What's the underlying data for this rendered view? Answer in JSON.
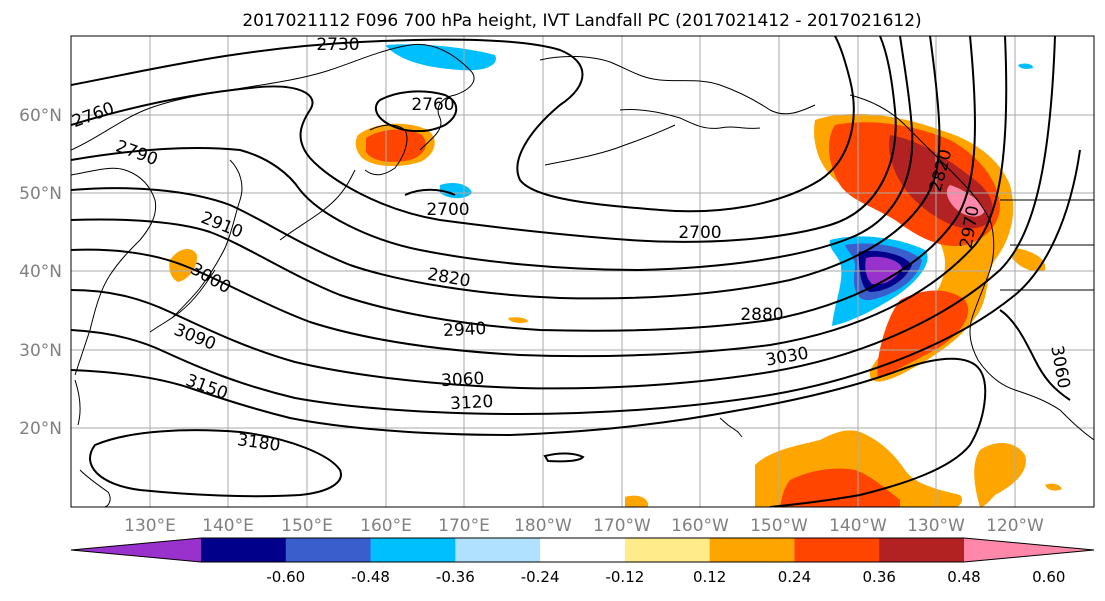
{
  "title": "2017021112 F096 700 hPa height, IVT Landfall PC (2017021412 - 2017021612)",
  "lat_labels": [
    "60°N",
    "50°N",
    "40°N",
    "30°N",
    "20°N"
  ],
  "lon_labels": [
    "130°E",
    "140°E",
    "150°E",
    "160°E",
    "170°E",
    "180°W",
    "170°W",
    "160°W",
    "150°W",
    "140°W",
    "130°W",
    "120°W"
  ],
  "contour_labels": [
    "2730",
    "2760",
    "2760",
    "2790",
    "2700",
    "2700",
    "2910",
    "3000",
    "2820",
    "3090",
    "2880",
    "2940",
    "3030",
    "3060",
    "3150",
    "3120",
    "3180",
    "2820",
    "2970",
    "3060"
  ],
  "colorbar": {
    "colors": [
      "#9932cc",
      "#00008b",
      "#3a5ecc",
      "#00bfff",
      "#b0e2ff",
      "#ffffff",
      "#ffeb8a",
      "#ffa500",
      "#ff4500",
      "#b22222",
      "#ff88aa"
    ],
    "tick_labels": [
      "-0.60",
      "-0.48",
      "-0.36",
      "-0.24",
      "-0.12",
      "0.12",
      "0.24",
      "0.36",
      "0.48",
      "0.60"
    ]
  }
}
